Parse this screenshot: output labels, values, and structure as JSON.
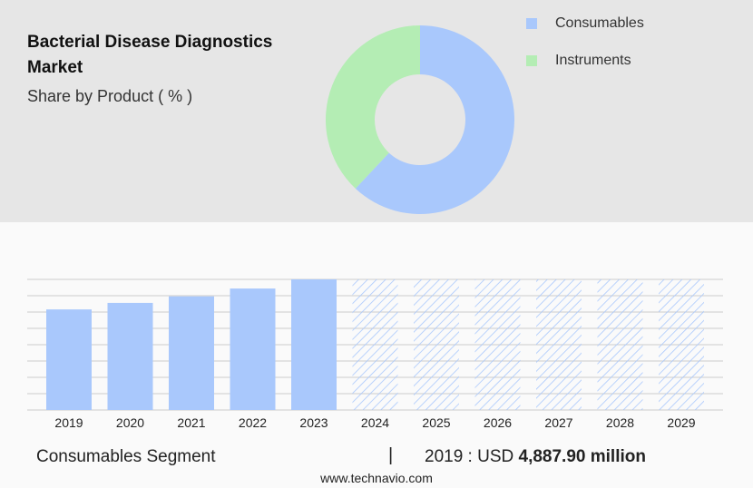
{
  "header": {
    "title": "Bacterial Disease Diagnostics Market",
    "subtitle": "Share by Product ( % )"
  },
  "colors": {
    "consumables": "#a9c8fc",
    "instruments": "#b4edb4",
    "forecast_hatch": "#a9c8fc",
    "grid": "#cccccc"
  },
  "chart_data": [
    {
      "type": "pie",
      "variant": "donut",
      "categories": [
        "Consumables",
        "Instruments"
      ],
      "values": [
        62,
        38
      ],
      "legend": "top-right"
    },
    {
      "type": "bar",
      "categories": [
        "2019",
        "2020",
        "2021",
        "2022",
        "2023",
        "2024",
        "2025",
        "2026",
        "2027",
        "2028",
        "2029"
      ],
      "values": [
        77,
        82,
        87,
        93,
        100,
        100,
        100,
        100,
        100,
        100,
        100
      ],
      "forecast_from": "2024",
      "ylim": [
        0,
        100
      ],
      "grid": true
    }
  ],
  "footer": {
    "segment_label": "Consumables Segment",
    "separator": "|",
    "year_prefix": "2019 : USD",
    "value": "4,887.90 million",
    "url": "www.technavio.com"
  }
}
